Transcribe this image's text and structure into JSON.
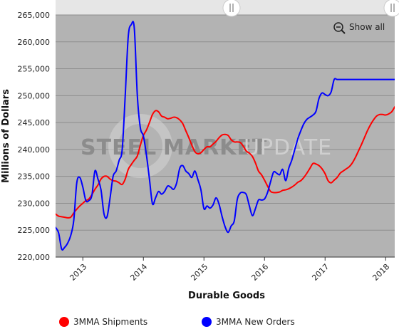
{
  "chart_data": {
    "type": "line",
    "title": "",
    "xlabel": "Durable Goods",
    "ylabel": "Millions of Dollars",
    "ylim": [
      220000,
      265000
    ],
    "yticks": [
      220000,
      225000,
      230000,
      235000,
      240000,
      245000,
      250000,
      255000,
      260000,
      265000
    ],
    "ytick_labels": [
      "220,000",
      "225,000",
      "230,000",
      "235,000",
      "240,000",
      "245,000",
      "250,000",
      "255,000",
      "260,000",
      "265,000"
    ],
    "xlim": [
      2012.55,
      2018.15
    ],
    "xticks": [
      2013,
      2014,
      2015,
      2016,
      2017,
      2018
    ],
    "xtick_labels": [
      "2013",
      "2014",
      "2015",
      "2016",
      "2017",
      "2018"
    ],
    "grid": true,
    "legend_position": "bottom",
    "watermark": {
      "part1": "STEEL",
      "part2": "MARKET",
      "part3": "UPDATE"
    },
    "show_all_label": "Show all",
    "series": [
      {
        "name": "3MMA Shipments",
        "color": "#ff0000",
        "x": [
          2012.55,
          2012.6,
          2012.65,
          2012.7,
          2012.75,
          2012.8,
          2012.85,
          2012.9,
          2012.95,
          2013.0,
          2013.05,
          2013.1,
          2013.15,
          2013.2,
          2013.25,
          2013.3,
          2013.35,
          2013.4,
          2013.45,
          2013.5,
          2013.55,
          2013.6,
          2013.65,
          2013.7,
          2013.75,
          2013.8,
          2013.85,
          2013.9,
          2013.95,
          2014.0,
          2014.05,
          2014.1,
          2014.15,
          2014.2,
          2014.25,
          2014.3,
          2014.35,
          2014.4,
          2014.45,
          2014.5,
          2014.55,
          2014.6,
          2014.65,
          2014.7,
          2014.75,
          2014.8,
          2014.85,
          2014.9,
          2014.95,
          2015.0,
          2015.05,
          2015.1,
          2015.15,
          2015.2,
          2015.25,
          2015.3,
          2015.35,
          2015.4,
          2015.45,
          2015.5,
          2015.55,
          2015.6,
          2015.65,
          2015.7,
          2015.75,
          2015.8,
          2015.85,
          2015.9,
          2015.95,
          2016.0,
          2016.05,
          2016.1,
          2016.15,
          2016.2,
          2016.25,
          2016.3,
          2016.35,
          2016.4,
          2016.45,
          2016.5,
          2016.55,
          2016.6,
          2016.65,
          2016.7,
          2016.75,
          2016.8,
          2016.85,
          2016.9,
          2016.95,
          2017.0,
          2017.05,
          2017.1,
          2017.15,
          2017.2,
          2017.25,
          2017.3,
          2017.35,
          2017.4,
          2017.45,
          2017.5,
          2017.55,
          2017.6,
          2017.65,
          2017.7,
          2017.75,
          2017.8,
          2017.85,
          2017.9,
          2017.95,
          2018.0,
          2018.05,
          2018.1,
          2018.15
        ],
        "y": [
          228000,
          227600,
          227500,
          227400,
          227300,
          227400,
          228200,
          228900,
          229500,
          230000,
          230500,
          230800,
          231600,
          232600,
          233400,
          234500,
          235000,
          235000,
          234500,
          234200,
          234100,
          233800,
          233500,
          234500,
          236300,
          237200,
          238000,
          238800,
          240800,
          242600,
          243600,
          245000,
          246500,
          247200,
          247000,
          246200,
          246000,
          245700,
          245800,
          246000,
          245900,
          245500,
          244800,
          243500,
          242200,
          240800,
          239600,
          239200,
          239400,
          240000,
          240500,
          240500,
          241000,
          241500,
          242200,
          242700,
          242800,
          242600,
          241800,
          241400,
          241400,
          241300,
          240600,
          239700,
          239300,
          238700,
          237500,
          236000,
          235300,
          234300,
          233200,
          232200,
          232000,
          232000,
          232100,
          232400,
          232500,
          232700,
          233000,
          233400,
          233900,
          234200,
          234800,
          235600,
          236500,
          237400,
          237300,
          237000,
          236400,
          235500,
          234200,
          233800,
          234300,
          234800,
          235600,
          236000,
          236400,
          236800,
          237500,
          238500,
          239700,
          240900,
          242200,
          243500,
          244600,
          245500,
          246200,
          246500,
          246500,
          246400,
          246600,
          247000,
          247900
        ]
      },
      {
        "name": "3MMA New Orders",
        "color": "#0000ff",
        "x": [
          2012.55,
          2012.6,
          2012.65,
          2012.7,
          2012.75,
          2012.8,
          2012.85,
          2012.9,
          2012.95,
          2013.0,
          2013.05,
          2013.1,
          2013.15,
          2013.2,
          2013.25,
          2013.3,
          2013.35,
          2013.4,
          2013.45,
          2013.5,
          2013.55,
          2013.6,
          2013.65,
          2013.7,
          2013.75,
          2013.8,
          2013.85,
          2013.9,
          2013.95,
          2014.0,
          2014.05,
          2014.1,
          2014.15,
          2014.2,
          2014.25,
          2014.3,
          2014.35,
          2014.4,
          2014.45,
          2014.5,
          2014.55,
          2014.6,
          2014.65,
          2014.7,
          2014.75,
          2014.8,
          2014.85,
          2014.9,
          2014.95,
          2015.0,
          2015.05,
          2015.1,
          2015.15,
          2015.2,
          2015.25,
          2015.3,
          2015.35,
          2015.4,
          2015.45,
          2015.5,
          2015.55,
          2015.6,
          2015.65,
          2015.7,
          2015.75,
          2015.8,
          2015.85,
          2015.9,
          2015.95,
          2016.0,
          2016.05,
          2016.1,
          2016.15,
          2016.2,
          2016.25,
          2016.3,
          2016.35,
          2016.4,
          2016.45,
          2016.5,
          2016.55,
          2016.6,
          2016.65,
          2016.7,
          2016.75,
          2016.8,
          2016.85,
          2016.9,
          2016.95,
          2017.0,
          2017.05,
          2017.1,
          2017.15,
          2017.2,
          2017.25,
          2017.3,
          2017.35,
          2017.4,
          2017.45,
          2017.5,
          2017.55,
          2017.6,
          2017.65,
          2017.7,
          2017.75,
          2017.8,
          2017.85,
          2017.9,
          2017.95,
          2018.0,
          2018.05,
          2018.1,
          2018.15
        ],
        "y": [
          225500,
          224500,
          221500,
          221800,
          222600,
          224000,
          226800,
          233800,
          234800,
          233000,
          230500,
          230500,
          231500,
          236000,
          234500,
          232500,
          228000,
          227500,
          231000,
          235000,
          236000,
          238000,
          240000,
          250000,
          261000,
          263200,
          262500,
          250000,
          244000,
          242500,
          239000,
          234500,
          229900,
          231000,
          232200,
          231700,
          232200,
          233200,
          233000,
          232600,
          233800,
          236500,
          237000,
          236000,
          235500,
          234800,
          236000,
          234400,
          232500,
          229000,
          229500,
          229100,
          229700,
          231000,
          229800,
          227500,
          225600,
          224600,
          225800,
          226700,
          230700,
          231900,
          232000,
          231600,
          229500,
          227700,
          229000,
          230600,
          230600,
          230800,
          232000,
          234000,
          235800,
          235600,
          235300,
          236300,
          234200,
          236500,
          238000,
          240000,
          242000,
          243500,
          244800,
          245600,
          246000,
          246400,
          247100,
          249500,
          250500,
          250200,
          250000,
          250700,
          253000,
          253000,
          253000,
          253000,
          253000,
          253000,
          253000,
          253000,
          253000,
          253000,
          253000,
          253000,
          253000,
          253000,
          253000,
          253000,
          253000,
          253000,
          253000,
          253000,
          253000
        ]
      }
    ]
  }
}
